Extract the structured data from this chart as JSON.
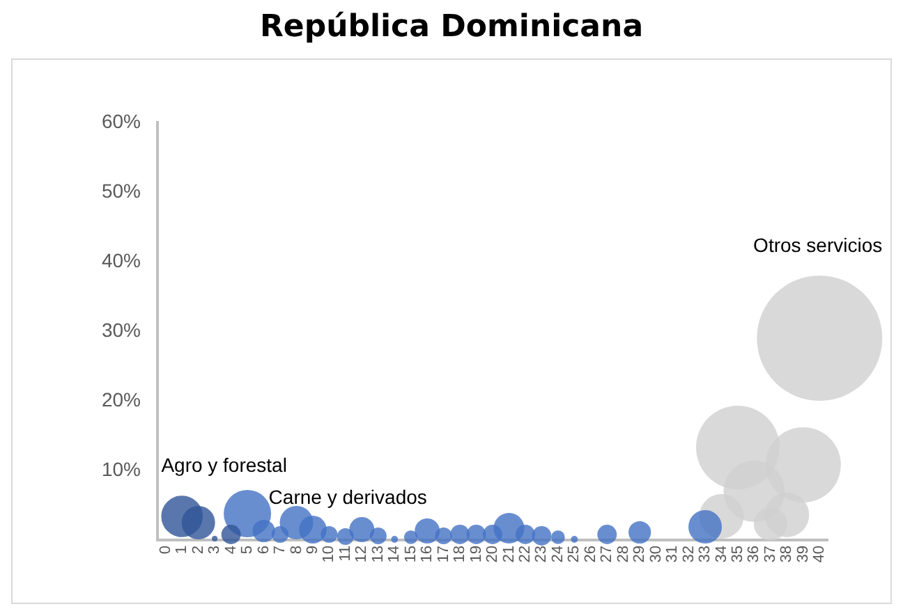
{
  "chart_data": {
    "type": "bubble",
    "title": "República Dominicana",
    "xlim": [
      -0.5,
      40.5
    ],
    "xticks": [
      0,
      1,
      2,
      3,
      4,
      5,
      6,
      7,
      8,
      9,
      10,
      11,
      12,
      13,
      14,
      15,
      16,
      17,
      18,
      19,
      20,
      21,
      22,
      23,
      24,
      25,
      26,
      27,
      28,
      29,
      30,
      31,
      32,
      33,
      34,
      35,
      36,
      37,
      38,
      39,
      40
    ],
    "ylim": [
      0,
      60
    ],
    "yticks": [
      {
        "value": 0,
        "label": null
      },
      {
        "value": 10,
        "label": "10%"
      },
      {
        "value": 20,
        "label": "20%"
      },
      {
        "value": 30,
        "label": "30%"
      },
      {
        "value": 40,
        "label": "40%"
      },
      {
        "value": 50,
        "label": "50%"
      },
      {
        "value": 60,
        "label": "60%"
      }
    ],
    "grid": false,
    "legend": false,
    "series": [
      {
        "name": "Agro y forestal",
        "color": "#2f5597",
        "x": [
          1,
          2,
          3,
          4
        ],
        "values": [
          3.4,
          2.5,
          0.2,
          0.8
        ],
        "sizes": [
          0.11,
          0.071,
          0.002,
          0.024
        ]
      },
      {
        "color": "#4472c4",
        "x": [
          5,
          6,
          7,
          8,
          9,
          10,
          11,
          12,
          13,
          14,
          15,
          16,
          17,
          18,
          19,
          20,
          21,
          22,
          23,
          24,
          25,
          27,
          29,
          33
        ],
        "values": [
          3.8,
          1.3,
          0.8,
          2.5,
          1.5,
          0.8,
          0.5,
          1.5,
          0.6,
          0.1,
          0.4,
          1.3,
          0.6,
          0.8,
          0.8,
          0.8,
          1.7,
          0.8,
          0.6,
          0.4,
          0.1,
          0.8,
          1.1,
          1.9
        ],
        "sizes": [
          0.143,
          0.032,
          0.018,
          0.071,
          0.049,
          0.018,
          0.018,
          0.04,
          0.018,
          0.003,
          0.012,
          0.04,
          0.018,
          0.024,
          0.024,
          0.024,
          0.06,
          0.024,
          0.024,
          0.012,
          0.003,
          0.024,
          0.032,
          0.071
        ]
      },
      {
        "name": "Otros servicios",
        "color": "#d0d0d0",
        "x": [
          34,
          35,
          36,
          37,
          38,
          39,
          40
        ],
        "values": [
          3.4,
          13.3,
          7.0,
          2.3,
          3.6,
          10.8,
          29
        ],
        "sizes": [
          0.126,
          0.444,
          0.239,
          0.071,
          0.126,
          0.36,
          1
        ]
      }
    ],
    "annotations": [
      {
        "text": "Carne y derivados",
        "x": 6.3,
        "y": 6
      }
    ]
  }
}
